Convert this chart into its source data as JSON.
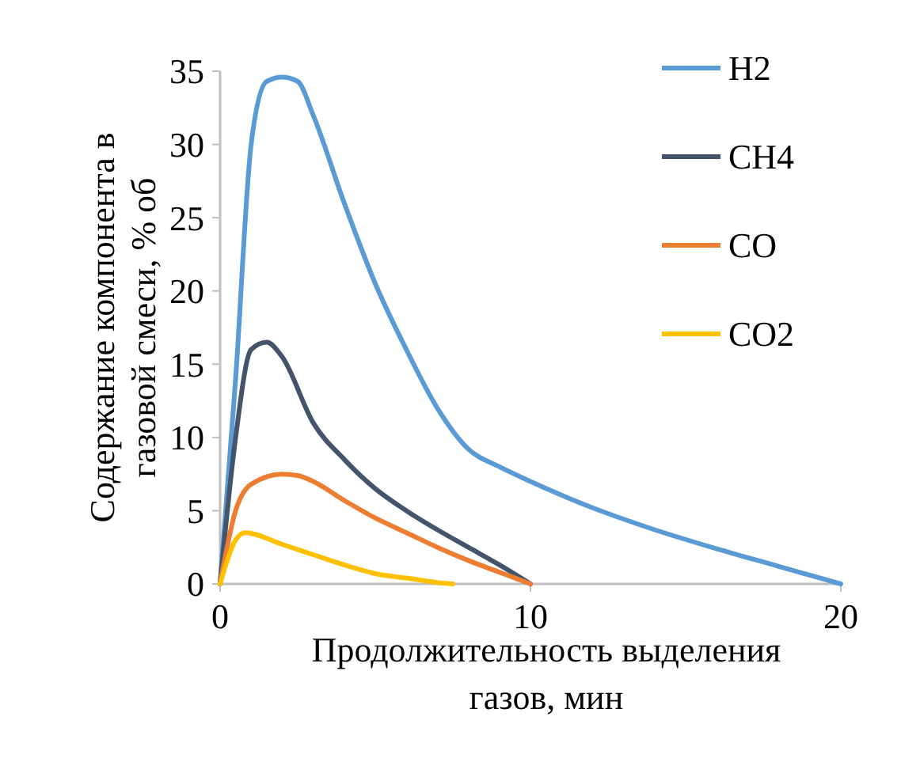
{
  "chart_data": {
    "type": "line",
    "xlabel": "Продолжительность выделения газов, мин",
    "ylabel": "Содержание компонента в газовой смеси, % об",
    "xlim": [
      0,
      20
    ],
    "xticks": [
      0,
      10,
      20
    ],
    "ylim": [
      0,
      35
    ],
    "yticks": [
      0,
      5,
      10,
      15,
      20,
      25,
      30,
      35
    ],
    "grid": false,
    "legend": "top right",
    "series": [
      {
        "name": "H2",
        "color": "#5b9bd5",
        "x": [
          0,
          0.5,
          1,
          1.5,
          2,
          2.5,
          3,
          4,
          5,
          6,
          7,
          8,
          9,
          10,
          12,
          14,
          16,
          18,
          20
        ],
        "values": [
          0,
          14,
          30,
          34.3,
          34.6,
          34.3,
          32,
          26,
          20.5,
          16,
          12,
          9.2,
          8,
          7,
          5.2,
          3.7,
          2.4,
          1.2,
          0
        ]
      },
      {
        "name": "CH4",
        "color": "#44546a",
        "x": [
          0,
          0.5,
          1,
          1.5,
          2,
          3,
          4,
          5,
          6,
          7,
          8,
          9,
          10
        ],
        "values": [
          0,
          10,
          16,
          16.5,
          15.5,
          11,
          8.5,
          6.5,
          5,
          3.7,
          2.5,
          1.3,
          0
        ]
      },
      {
        "name": "CO",
        "color": "#ed7d31",
        "x": [
          0,
          0.5,
          1,
          2,
          2.5,
          3,
          4,
          5,
          6,
          7,
          8,
          9,
          10
        ],
        "values": [
          0,
          5,
          6.8,
          7.5,
          7.4,
          7,
          5.7,
          4.5,
          3.5,
          2.5,
          1.6,
          0.8,
          0
        ]
      },
      {
        "name": "CO2",
        "color": "#ffc000",
        "x": [
          0,
          0.5,
          0.8,
          2,
          3,
          4,
          5,
          6,
          7,
          7.5
        ],
        "values": [
          0,
          3,
          3.5,
          2.7,
          2,
          1.3,
          0.7,
          0.4,
          0.1,
          0
        ]
      }
    ]
  }
}
